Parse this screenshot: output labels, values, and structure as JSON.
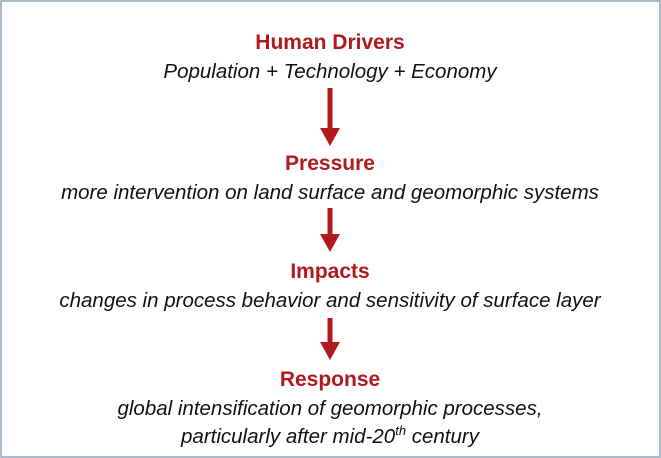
{
  "nodes": [
    {
      "title": "Human Drivers",
      "description": "Population + Technology + Economy"
    },
    {
      "title": "Pressure",
      "description": "more intervention on land surface and geomorphic systems"
    },
    {
      "title": "Impacts",
      "description": "changes in process behavior and sensitivity of surface layer"
    },
    {
      "title": "Response",
      "description": "global intensification of geomorphic processes,",
      "description_line2": {
        "text": "particularly after mid-20",
        "superscript": "th",
        "rest": " century"
      }
    }
  ]
}
